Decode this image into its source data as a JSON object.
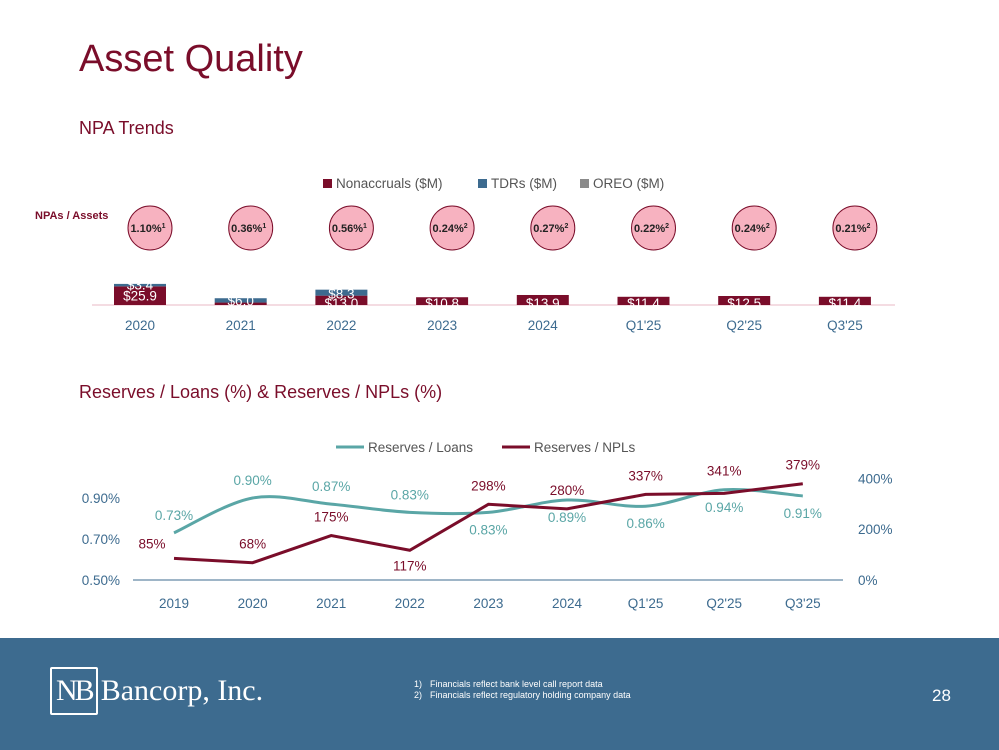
{
  "slide": {
    "title": "Asset Quality",
    "npa_subtitle": "NPA Trends",
    "reserves_subtitle": "Reserves / Loans (%) & Reserves / NPLs (%)",
    "npas_assets_label": "NPAs / Assets",
    "page_number": "28"
  },
  "footer": {
    "logo_mark": "NB",
    "logo_text": "Bancorp, Inc.",
    "notes": [
      {
        "num": "1)",
        "text": "Financials reflect bank level call report data"
      },
      {
        "num": "2)",
        "text": "Financials reflect regulatory holding company data"
      }
    ]
  },
  "colors": {
    "maroon": "#7a0d2a",
    "blue": "#3d6b8f",
    "gray": "#8a8a8a",
    "teal": "#5aa6a6",
    "pink": "#f7b2c0",
    "footer": "#3d6b8f"
  },
  "chart_data": [
    {
      "type": "bar",
      "title": "NPA Trends",
      "stacked": true,
      "categories": [
        "2020",
        "2021",
        "2022",
        "2023",
        "2024",
        "Q1'25",
        "Q2'25",
        "Q3'25"
      ],
      "series": [
        {
          "name": "Nonaccruals ($M)",
          "values": [
            25.9,
            3.4,
            13.0,
            10.8,
            13.9,
            11.4,
            12.5,
            11.4
          ],
          "labels": [
            "$25.9",
            "",
            "$13.0",
            "$10.8",
            "$13.9",
            "$11.4",
            "$12.5",
            "$11.4"
          ]
        },
        {
          "name": "TDRs ($M)",
          "values": [
            3.4,
            6.0,
            8.3,
            0,
            0,
            0,
            0,
            0
          ],
          "labels": [
            "$3.4",
            "$6.0",
            "$8.3",
            "",
            "",
            "",
            "",
            ""
          ]
        },
        {
          "name": "OREO ($M)",
          "values": [
            0,
            0,
            0,
            0,
            0,
            0,
            0,
            0
          ],
          "labels": [
            "",
            "",
            "",
            "",
            "",
            "",
            "",
            ""
          ]
        }
      ],
      "npas_to_assets": [
        {
          "value": "1.10%",
          "note": "1"
        },
        {
          "value": "0.36%",
          "note": "1"
        },
        {
          "value": "0.56%",
          "note": "1"
        },
        {
          "value": "0.24%",
          "note": "2"
        },
        {
          "value": "0.27%",
          "note": "2"
        },
        {
          "value": "0.22%",
          "note": "2"
        },
        {
          "value": "0.24%",
          "note": "2"
        },
        {
          "value": "0.21%",
          "note": "2"
        }
      ],
      "legend": "top-center"
    },
    {
      "type": "line",
      "title": "Reserves / Loans (%) & Reserves / NPLs (%)",
      "categories": [
        "2019",
        "2020",
        "2021",
        "2022",
        "2023",
        "2024",
        "Q1'25",
        "Q2'25",
        "Q3'25"
      ],
      "series": [
        {
          "name": "Reserves / Loans",
          "axis": "left",
          "smooth": true,
          "values": [
            0.73,
            0.9,
            0.87,
            0.83,
            0.83,
            0.89,
            0.86,
            0.94,
            0.91
          ],
          "labels": [
            "0.73%",
            "0.90%",
            "0.87%",
            "0.83%",
            "0.83%",
            "0.89%",
            "0.86%",
            "0.94%",
            "0.91%"
          ]
        },
        {
          "name": "Reserves / NPLs",
          "axis": "right",
          "smooth": false,
          "values": [
            85,
            68,
            175,
            117,
            298,
            280,
            337,
            341,
            379
          ],
          "labels": [
            "85%",
            "68%",
            "175%",
            "117%",
            "298%",
            "280%",
            "337%",
            "341%",
            "379%"
          ]
        }
      ],
      "left_axis": {
        "ylim": [
          0.5,
          0.9
        ],
        "ticks": [
          "0.90%",
          "0.70%",
          "0.50%"
        ]
      },
      "right_axis": {
        "ylim": [
          0,
          400
        ],
        "ticks": [
          "400%",
          "200%",
          "0%"
        ]
      },
      "legend": "top-center"
    }
  ]
}
